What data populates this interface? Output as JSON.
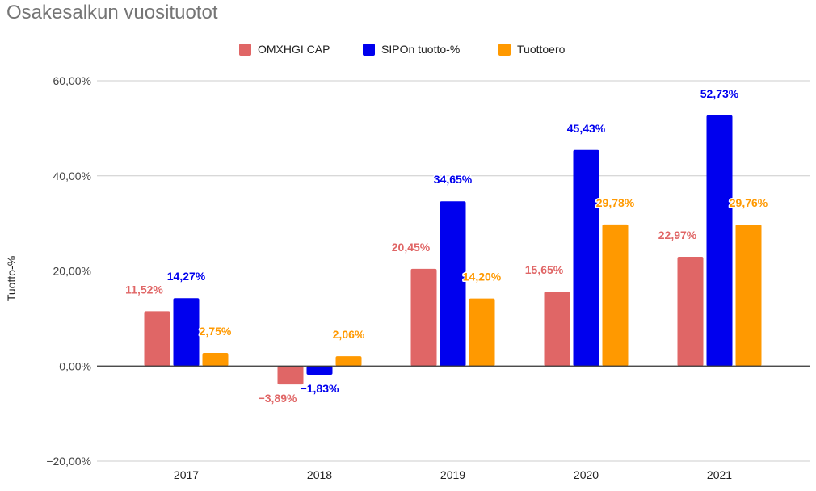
{
  "chart_data": {
    "type": "bar",
    "title": "Osakesalkun vuosituotot",
    "xlabel": "",
    "ylabel": "Tuotto-%",
    "categories": [
      "2017",
      "2018",
      "2019",
      "2020",
      "2021"
    ],
    "ylim": [
      -20,
      60
    ],
    "yticks": [
      60,
      40,
      20,
      0,
      -20
    ],
    "ytick_labels": [
      "60,00%",
      "40,00%",
      "20,00%",
      "0,00%",
      "−20,00%"
    ],
    "grid": true,
    "legend_position": "top",
    "series": [
      {
        "name": "OMXHGI CAP",
        "color": "#e06666",
        "values": [
          11.52,
          -3.89,
          20.45,
          15.65,
          22.97
        ],
        "labels": [
          "11,52%",
          "−3,89%",
          "20,45%",
          "15,65%",
          "22,97%"
        ]
      },
      {
        "name": "SIPOn tuotto-%",
        "color": "#0000ee",
        "values": [
          14.27,
          -1.83,
          34.65,
          45.43,
          52.73
        ],
        "labels": [
          "14,27%",
          "−1,83%",
          "34,65%",
          "45,43%",
          "52,73%"
        ]
      },
      {
        "name": "Tuottoero",
        "color": "#ff9900",
        "values": [
          2.75,
          2.06,
          14.2,
          29.78,
          29.76
        ],
        "labels": [
          "2,75%",
          "2,06%",
          "14,20%",
          "29,78%",
          "29,76%"
        ]
      }
    ]
  }
}
